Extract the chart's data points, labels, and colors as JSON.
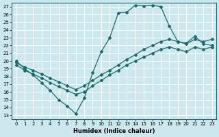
{
  "xlabel": "Humidex (Indice chaleur)",
  "bg_color": "#cce8ee",
  "grid_color": "#ffffff",
  "line_color": "#1a6b6b",
  "xlim": [
    -0.5,
    23.5
  ],
  "ylim": [
    12.5,
    27.5
  ],
  "xticks": [
    0,
    1,
    2,
    3,
    4,
    5,
    6,
    7,
    8,
    9,
    10,
    11,
    12,
    13,
    14,
    15,
    16,
    17,
    18,
    19,
    20,
    21,
    22,
    23
  ],
  "yticks": [
    13,
    14,
    15,
    16,
    17,
    18,
    19,
    20,
    21,
    22,
    23,
    24,
    25,
    26,
    27
  ],
  "line1_x": [
    0,
    1,
    2,
    3,
    4,
    5,
    6,
    7,
    8,
    9,
    10,
    11,
    12,
    13,
    14,
    15,
    16,
    17,
    18,
    19,
    20,
    21,
    22,
    23
  ],
  "line1_y": [
    20.0,
    19.0,
    18.2,
    17.2,
    16.2,
    15.0,
    14.2,
    13.2,
    15.2,
    18.5,
    21.2,
    23.0,
    26.2,
    26.3,
    27.2,
    27.1,
    27.2,
    27.0,
    24.5,
    22.5,
    22.3,
    23.2,
    22.2,
    22.0
  ],
  "line2_x": [
    0,
    1,
    2,
    3,
    4,
    5,
    6,
    7,
    8,
    9,
    10,
    11,
    12,
    13,
    14,
    15,
    16,
    17,
    18,
    19,
    20,
    21,
    22,
    23
  ],
  "line2_y": [
    19.8,
    19.2,
    18.8,
    18.3,
    17.8,
    17.3,
    16.8,
    16.3,
    16.8,
    17.5,
    18.2,
    18.8,
    19.5,
    20.2,
    20.8,
    21.5,
    22.0,
    22.5,
    22.8,
    22.5,
    22.2,
    22.8,
    22.5,
    22.8
  ],
  "line3_x": [
    0,
    1,
    2,
    3,
    4,
    5,
    6,
    7,
    8,
    9,
    10,
    11,
    12,
    13,
    14,
    15,
    16,
    17,
    18,
    19,
    20,
    21,
    22,
    23
  ],
  "line3_y": [
    19.5,
    18.8,
    18.3,
    17.8,
    17.2,
    16.7,
    16.2,
    15.7,
    16.0,
    16.8,
    17.5,
    18.2,
    18.8,
    19.5,
    20.0,
    20.5,
    21.0,
    21.5,
    21.8,
    21.5,
    21.2,
    21.8,
    21.5,
    21.8
  ]
}
